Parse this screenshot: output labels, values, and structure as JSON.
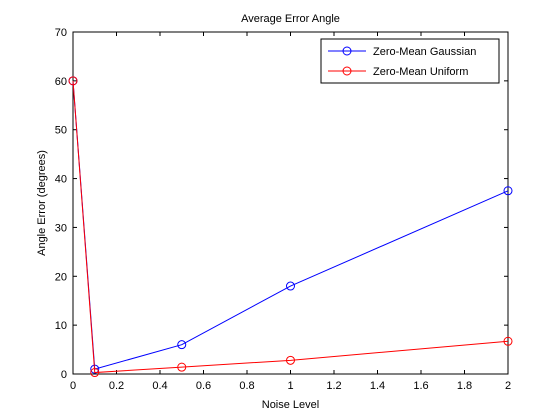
{
  "chart_data": {
    "type": "line",
    "title": "Average Error Angle",
    "xlabel": "Noise Level",
    "ylabel": "Angle Error (degrees)",
    "xlim": [
      0,
      2
    ],
    "ylim": [
      0,
      70
    ],
    "xticks": [
      0,
      0.2,
      0.4,
      0.6,
      0.8,
      1,
      1.2,
      1.4,
      1.6,
      1.8,
      2
    ],
    "yticks": [
      0,
      10,
      20,
      30,
      40,
      50,
      60,
      70
    ],
    "grid": false,
    "legend_position": "top-right",
    "series": [
      {
        "name": "Zero-Mean Gaussian",
        "color": "#0000ff",
        "marker": "circle",
        "x": [
          0,
          0.1,
          0.5,
          1,
          2
        ],
        "y": [
          60,
          1,
          6,
          18,
          37.5
        ]
      },
      {
        "name": "Zero-Mean Uniform",
        "color": "#ff0000",
        "marker": "circle",
        "x": [
          0,
          0.1,
          0.5,
          1,
          2
        ],
        "y": [
          60,
          0.3,
          1.4,
          2.8,
          6.7
        ]
      }
    ]
  }
}
